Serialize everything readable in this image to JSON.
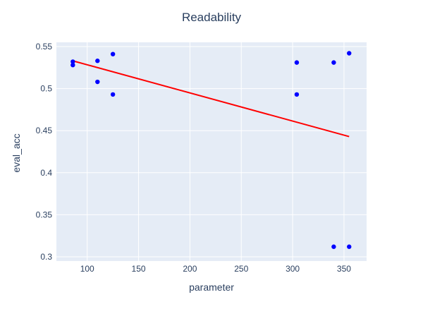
{
  "chart_data": {
    "type": "scatter",
    "title": "Readability",
    "xlabel": "parameter",
    "ylabel": "eval_acc",
    "xlim": [
      70,
      372
    ],
    "ylim": [
      0.295,
      0.555
    ],
    "x_ticks": [
      100,
      150,
      200,
      250,
      300,
      350
    ],
    "y_ticks": [
      0.3,
      0.35,
      0.4,
      0.45,
      0.5,
      0.55
    ],
    "y_tick_labels": [
      "0.3",
      "0.35",
      "0.4",
      "0.45",
      "0.5",
      "0.55"
    ],
    "grid": true,
    "colors": {
      "plot_background": "#e5ecf6",
      "grid": "#ffffff",
      "points": "#0000ff",
      "trendline": "#ff0000",
      "text": "#2a3f5f"
    },
    "series": [
      {
        "mode": "markers",
        "x": [
          86,
          86,
          110,
          110,
          125,
          125,
          304,
          304,
          340,
          340,
          355,
          355
        ],
        "y": [
          0.532,
          0.528,
          0.533,
          0.508,
          0.541,
          0.493,
          0.531,
          0.493,
          0.531,
          0.312,
          0.542,
          0.312
        ]
      },
      {
        "mode": "lines",
        "x": [
          86,
          355
        ],
        "y": [
          0.533,
          0.443
        ]
      }
    ]
  }
}
